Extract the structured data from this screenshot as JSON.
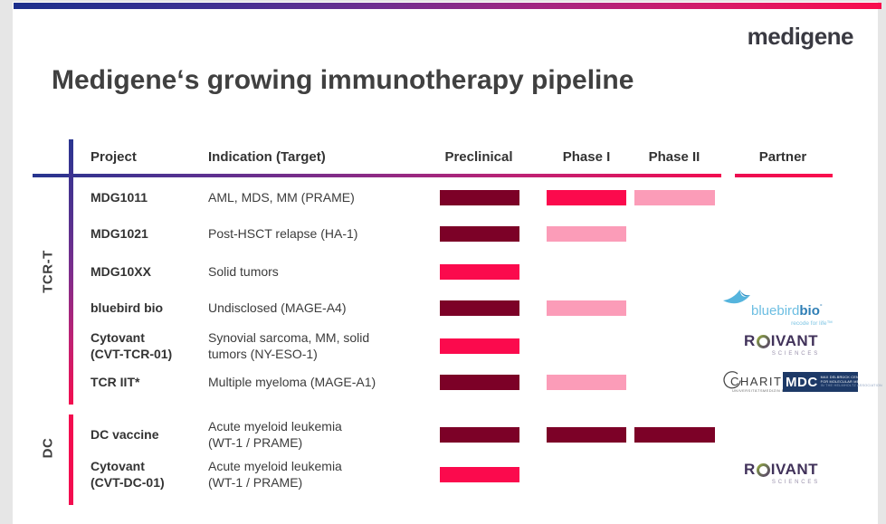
{
  "brand": {
    "logo_text": "medigene"
  },
  "page": {
    "title": "Medigene‘s growing immunotherapy pipeline"
  },
  "colors": {
    "bar_dark": "#7C0127",
    "bar_bright": "#FB0A4D",
    "bar_light": "#FB9CB8",
    "accent_pink": "#F30D4F",
    "gradient_blue": "#27358F",
    "gradient_purple": "#7C2D8C",
    "mdc_navy": "#1D3967",
    "bluebird_light_blue": "#6CBEE2",
    "bluebird_dark_blue": "#2E7EB5",
    "roivant_purple": "#41325A"
  },
  "table": {
    "headers": {
      "project": "Project",
      "indication": "Indication (Target)",
      "preclinical": "Preclinical",
      "phase1": "Phase I",
      "phase2": "Phase II",
      "partner": "Partner"
    },
    "groups": [
      {
        "label": "TCR-T"
      },
      {
        "label": "DC"
      }
    ],
    "rows": [
      {
        "group": "TCR-T",
        "project": "MDG1011",
        "indication": "AML, MDS, MM (PRAME)",
        "bars": [
          {
            "phase": "preclinical",
            "tone": "dark"
          },
          {
            "phase": "phase1",
            "tone": "bright"
          },
          {
            "phase": "phase2",
            "tone": "light"
          }
        ]
      },
      {
        "group": "TCR-T",
        "project": "MDG1021",
        "indication": "Post-HSCT relapse (HA-1)",
        "bars": [
          {
            "phase": "preclinical",
            "tone": "dark"
          },
          {
            "phase": "phase1",
            "tone": "light"
          }
        ]
      },
      {
        "group": "TCR-T",
        "project": "MDG10XX",
        "indication": "Solid tumors",
        "bars": [
          {
            "phase": "preclinical",
            "tone": "bright"
          }
        ]
      },
      {
        "group": "TCR-T",
        "project": "bluebird bio",
        "indication": "Undisclosed (MAGE-A4)",
        "partner": "bluebird bio",
        "bars": [
          {
            "phase": "preclinical",
            "tone": "dark"
          },
          {
            "phase": "phase1",
            "tone": "light"
          }
        ]
      },
      {
        "group": "TCR-T",
        "project": [
          "Cytovant",
          "(CVT-TCR-01)"
        ],
        "indication": [
          "Synovial sarcoma, MM, solid",
          "tumors (NY-ESO-1)"
        ],
        "partner": "Roivant Sciences",
        "bars": [
          {
            "phase": "preclinical",
            "tone": "bright"
          }
        ]
      },
      {
        "group": "TCR-T",
        "project": "TCR IIT*",
        "indication": "Multiple myeloma (MAGE-A1)",
        "partner": "Charité / MDC",
        "bars": [
          {
            "phase": "preclinical",
            "tone": "dark"
          },
          {
            "phase": "phase1",
            "tone": "light"
          }
        ]
      },
      {
        "group": "DC",
        "project": "DC vaccine",
        "indication": [
          "Acute myeloid leukemia",
          "(WT-1 / PRAME)"
        ],
        "bars": [
          {
            "phase": "preclinical",
            "tone": "dark"
          },
          {
            "phase": "phase1",
            "tone": "dark"
          },
          {
            "phase": "phase2",
            "tone": "dark"
          }
        ]
      },
      {
        "group": "DC",
        "project": [
          "Cytovant",
          "(CVT-DC-01)"
        ],
        "indication": [
          "Acute myeloid leukemia",
          "(WT-1 / PRAME)"
        ],
        "partner": "Roivant Sciences",
        "bars": [
          {
            "phase": "preclinical",
            "tone": "bright"
          }
        ]
      }
    ]
  },
  "partner_logos": {
    "bluebird": {
      "name": "bluebird",
      "bold": "bio",
      "mark": "°",
      "tagline": "recode for life™"
    },
    "roivant": {
      "prefix": "R",
      "suffix": "IVANT",
      "subtitle": "SCIENCES"
    },
    "charite": {
      "name": "CHARITÉ",
      "tagline": "UNIVERSITÄTSMEDIZIN BERLIN"
    },
    "mdc": {
      "abbr": "MDC",
      "line1": "MAX DELBRÜCK CENTER",
      "line2": "FOR MOLECULAR MEDICINE",
      "line3": "IN THE HELMHOLTZ ASSOCIATION"
    }
  }
}
